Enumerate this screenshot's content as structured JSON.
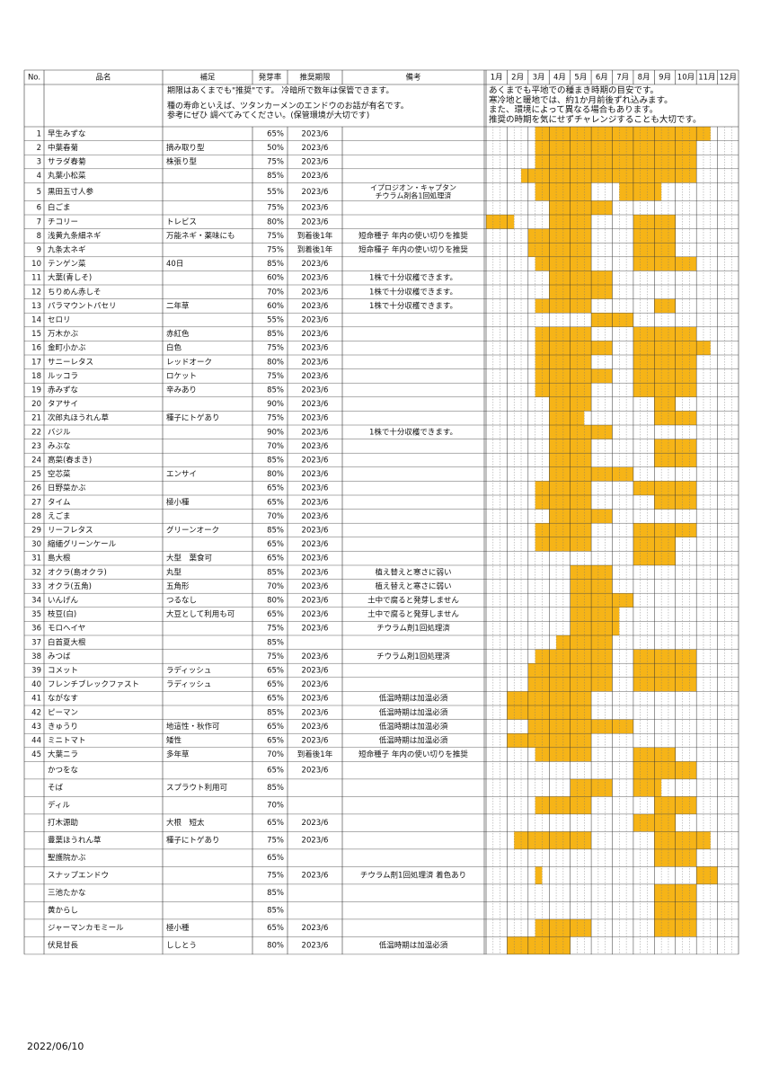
{
  "table": {
    "columns": [
      "No.",
      "品名",
      "補足",
      "発芽率",
      "推奨期限",
      "備考"
    ],
    "months": [
      "1月",
      "2月",
      "3月",
      "4月",
      "5月",
      "6月",
      "7月",
      "8月",
      "9月",
      "10月",
      "11月",
      "12月"
    ],
    "note": {
      "left": [
        "期限はあくまでも\"推奨\"です。 冷暗所で数年は保管できます。",
        "種の寿命といえば、ツタンカーメンのエンドウのお話が有名です。",
        "参考にぜひ 調べてみてください。(保管環境が大切です)"
      ],
      "right": [
        "あくまでも平地での種まき時期の目安です。",
        "寒冷地と暖地では、約1か月前後ずれ込みます。",
        "また、環境によって異なる場合もあります。",
        "推奨の時期を気にせずチャレンジすることも大切です。"
      ]
    },
    "rows": [
      {
        "no": 1,
        "name": "早生みずな",
        "rate": "65%",
        "expiry": "2023/6",
        "sow": [
          [
            7,
            31
          ]
        ]
      },
      {
        "no": 2,
        "name": "中葉春菊",
        "note": "摘み取り型",
        "rate": "50%",
        "expiry": "2023/6",
        "sow": [
          [
            7,
            29
          ]
        ]
      },
      {
        "no": 3,
        "name": "サラダ春菊",
        "note": "株張り型",
        "rate": "75%",
        "expiry": "2023/6",
        "sow": [
          [
            7,
            29
          ]
        ]
      },
      {
        "no": 4,
        "name": "丸葉小松菜",
        "rate": "85%",
        "expiry": "2023/6",
        "sow": [
          [
            5,
            29
          ]
        ]
      },
      {
        "no": 5,
        "name": "黒田五寸人参",
        "rate": "55%",
        "expiry": "2023/6",
        "remark": [
          "イプロジオン・キャプタン",
          "チウラム剤各1回処理済"
        ],
        "sow": [
          [
            7,
            14
          ],
          [
            19,
            24
          ]
        ]
      },
      {
        "no": 6,
        "name": "白ごま",
        "rate": "75%",
        "expiry": "2023/6",
        "sow": [
          [
            9,
            17
          ]
        ]
      },
      {
        "no": 7,
        "name": "チコリー",
        "note": "トレビス",
        "rate": "80%",
        "expiry": "2023/6",
        "sow": [
          [
            0,
            3
          ],
          [
            9,
            14
          ],
          [
            21,
            26
          ]
        ]
      },
      {
        "no": 8,
        "name": "浅黄九条細ネギ",
        "note": "万能ネギ・薬味にも",
        "rate": "75%",
        "expiry": "到着後1年",
        "remark": "短命種子 年内の使い切りを推奨",
        "sow": [
          [
            6,
            14
          ],
          [
            21,
            26
          ]
        ]
      },
      {
        "no": 9,
        "name": "九条太ネギ",
        "rate": "75%",
        "expiry": "到着後1年",
        "remark": "短命種子 年内の使い切りを推奨",
        "sow": [
          [
            6,
            14
          ],
          [
            21,
            26
          ]
        ]
      },
      {
        "no": 10,
        "name": "テンゲン菜",
        "note": "40日",
        "rate": "85%",
        "expiry": "2023/6",
        "sow": [
          [
            7,
            14
          ],
          [
            21,
            29
          ]
        ]
      },
      {
        "no": 11,
        "name": "大葉(青しそ)",
        "rate": "60%",
        "expiry": "2023/6",
        "remark": "1株で十分収穫できます。",
        "sow": [
          [
            9,
            17
          ]
        ]
      },
      {
        "no": 12,
        "name": "ちりめん赤しそ",
        "rate": "70%",
        "expiry": "2023/6",
        "remark": "1株で十分収穫できます。",
        "sow": [
          [
            9,
            17
          ]
        ]
      },
      {
        "no": 13,
        "name": "パラマウントパセリ",
        "note": "二年草",
        "rate": "60%",
        "expiry": "2023/6",
        "remark": "1株で十分収穫できます。",
        "sow": [
          [
            7,
            14
          ],
          [
            24,
            26
          ]
        ]
      },
      {
        "no": 14,
        "name": "セロリ",
        "rate": "55%",
        "expiry": "2023/6",
        "sow": [
          [
            15,
            20
          ]
        ]
      },
      {
        "no": 15,
        "name": "万木かぶ",
        "note": "赤紅色",
        "rate": "85%",
        "expiry": "2023/6",
        "sow": [
          [
            7,
            14
          ],
          [
            21,
            29
          ]
        ]
      },
      {
        "no": 16,
        "name": "金町小かぶ",
        "note": "白色",
        "rate": "75%",
        "expiry": "2023/6",
        "sow": [
          [
            7,
            17
          ],
          [
            21,
            31
          ]
        ]
      },
      {
        "no": 17,
        "name": "サニーレタス",
        "note": "レッドオーク",
        "rate": "80%",
        "expiry": "2023/6",
        "sow": [
          [
            7,
            14
          ],
          [
            21,
            29
          ]
        ]
      },
      {
        "no": 18,
        "name": "ルッコラ",
        "note": "ロケット",
        "rate": "75%",
        "expiry": "2023/6",
        "sow": [
          [
            7,
            17
          ],
          [
            21,
            29
          ]
        ]
      },
      {
        "no": 19,
        "name": "赤みずな",
        "note": "辛みあり",
        "rate": "85%",
        "expiry": "2023/6",
        "sow": [
          [
            7,
            14
          ],
          [
            21,
            29
          ]
        ]
      },
      {
        "no": 20,
        "name": "タアサイ",
        "rate": "90%",
        "expiry": "2023/6",
        "sow": [
          [
            9,
            14
          ],
          [
            24,
            26
          ]
        ]
      },
      {
        "no": 21,
        "name": "次郎丸ほうれん草",
        "note": "種子にトゲあり",
        "rate": "75%",
        "expiry": "2023/6",
        "sow": [
          [
            9,
            13
          ],
          [
            24,
            29
          ]
        ]
      },
      {
        "no": 22,
        "name": "バジル",
        "rate": "90%",
        "expiry": "2023/6",
        "remark": "1株で十分収穫できます。",
        "sow": [
          [
            9,
            17
          ]
        ]
      },
      {
        "no": 23,
        "name": "みぶな",
        "rate": "70%",
        "expiry": "2023/6",
        "sow": [
          [
            9,
            14
          ],
          [
            24,
            29
          ]
        ]
      },
      {
        "no": 24,
        "name": "高菜(春まき)",
        "rate": "85%",
        "expiry": "2023/6",
        "sow": [
          [
            9,
            14
          ],
          [
            24,
            29
          ]
        ]
      },
      {
        "no": 25,
        "name": "空芯菜",
        "note": "エンサイ",
        "rate": "80%",
        "expiry": "2023/6",
        "sow": [
          [
            9,
            20
          ]
        ]
      },
      {
        "no": 26,
        "name": "日野菜かぶ",
        "rate": "65%",
        "expiry": "2023/6",
        "sow": [
          [
            7,
            14
          ],
          [
            21,
            29
          ]
        ]
      },
      {
        "no": 27,
        "name": "タイム",
        "note": "極小種",
        "rate": "65%",
        "expiry": "2023/6",
        "sow": [
          [
            7,
            14
          ],
          [
            24,
            29
          ]
        ]
      },
      {
        "no": 28,
        "name": "えごま",
        "rate": "70%",
        "expiry": "2023/6",
        "sow": [
          [
            9,
            17
          ]
        ]
      },
      {
        "no": 29,
        "name": "リーフレタス",
        "note": "グリーンオーク",
        "rate": "85%",
        "expiry": "2023/6",
        "sow": [
          [
            7,
            14
          ],
          [
            21,
            29
          ]
        ]
      },
      {
        "no": 30,
        "name": "縮緬グリーンケール",
        "rate": "65%",
        "expiry": "2023/6",
        "sow": [
          [
            7,
            14
          ],
          [
            21,
            26
          ]
        ]
      },
      {
        "no": 31,
        "name": "島大根",
        "note": "大型　葉食可",
        "rate": "65%",
        "expiry": "2023/6",
        "sow": [
          [
            21,
            26
          ]
        ]
      },
      {
        "no": 32,
        "name": "オクラ(島オクラ)",
        "note": "丸型",
        "rate": "85%",
        "expiry": "2023/6",
        "remark": "植え替えと寒さに弱い",
        "sow": [
          [
            12,
            17
          ]
        ]
      },
      {
        "no": 33,
        "name": "オクラ(五角)",
        "note": "五角形",
        "rate": "70%",
        "expiry": "2023/6",
        "remark": "植え替えと寒さに弱い",
        "sow": [
          [
            12,
            17
          ]
        ]
      },
      {
        "no": 34,
        "name": "いんげん",
        "note": "つるなし",
        "rate": "80%",
        "expiry": "2023/6",
        "remark": "土中で腐ると発芽しません",
        "sow": [
          [
            12,
            20
          ]
        ]
      },
      {
        "no": 35,
        "name": "枝豆(白)",
        "note": "大豆として利用も可",
        "rate": "65%",
        "expiry": "2023/6",
        "remark": "土中で腐ると発芽しません",
        "sow": [
          [
            12,
            18
          ]
        ]
      },
      {
        "no": 36,
        "name": "モロヘイヤ",
        "rate": "75%",
        "expiry": "2023/6",
        "remark": "チウラム剤1回処理済",
        "sow": [
          [
            12,
            18
          ]
        ]
      },
      {
        "no": 37,
        "name": "白首夏大根",
        "rate": "85%",
        "sow": [
          [
            10,
            17
          ]
        ]
      },
      {
        "no": 38,
        "name": "みつば",
        "rate": "75%",
        "expiry": "2023/6",
        "remark": "チウラム剤1回処理済",
        "sow": [
          [
            7,
            17
          ],
          [
            21,
            29
          ]
        ]
      },
      {
        "no": 39,
        "name": "コメット",
        "note": "ラディッシュ",
        "rate": "65%",
        "expiry": "2023/6",
        "sow": [
          [
            6,
            17
          ],
          [
            21,
            29
          ]
        ]
      },
      {
        "no": 40,
        "name": "フレンチブレックファスト",
        "note": "ラディッシュ",
        "rate": "65%",
        "expiry": "2023/6",
        "sow": [
          [
            6,
            17
          ],
          [
            21,
            29
          ]
        ]
      },
      {
        "no": 41,
        "name": "ながなす",
        "rate": "65%",
        "expiry": "2023/6",
        "remark": "低温時期は加温必須",
        "sow": [
          [
            3,
            14
          ]
        ]
      },
      {
        "no": 42,
        "name": "ピーマン",
        "rate": "85%",
        "expiry": "2023/6",
        "remark": "低温時期は加温必須",
        "sow": [
          [
            3,
            14
          ]
        ]
      },
      {
        "no": 43,
        "name": "きゅうり",
        "note": "地這性・秋作可",
        "rate": "65%",
        "expiry": "2023/6",
        "remark": "低温時期は加温必須",
        "sow": [
          [
            6,
            20
          ]
        ]
      },
      {
        "no": 44,
        "name": "ミニトマト",
        "note": "矮性",
        "rate": "65%",
        "expiry": "2023/6",
        "remark": "低温時期は加温必須",
        "sow": [
          [
            3,
            14
          ]
        ]
      },
      {
        "no": 45,
        "name": "大葉ニラ",
        "note": "多年草",
        "rate": "70%",
        "expiry": "到着後1年",
        "remark": "短命種子 年内の使い切りを推奨",
        "sow": [
          [
            7,
            14
          ],
          [
            21,
            26
          ]
        ]
      },
      {
        "name": "かつをな",
        "rate": "65%",
        "expiry": "2023/6",
        "sow": [
          [
            21,
            29
          ]
        ]
      },
      {
        "name": "そば",
        "note": "スプラウト利用可",
        "rate": "85%",
        "sow": [
          [
            12,
            17
          ],
          [
            21,
            24
          ]
        ]
      },
      {
        "name": "ディル",
        "rate": "70%",
        "sow": [
          [
            7,
            14
          ],
          [
            24,
            29
          ]
        ]
      },
      {
        "name": "打木源助",
        "note": "大根　短太",
        "rate": "65%",
        "expiry": "2023/6",
        "sow": [
          [
            21,
            26
          ]
        ]
      },
      {
        "name": "豊葉ほうれん草",
        "note": "種子にトゲあり",
        "rate": "75%",
        "expiry": "2023/6",
        "sow": [
          [
            4,
            14
          ],
          [
            24,
            31
          ]
        ]
      },
      {
        "name": "聖護院かぶ",
        "rate": "65%",
        "sow": [
          [
            24,
            29
          ]
        ]
      },
      {
        "name": "スナップエンドウ",
        "rate": "75%",
        "expiry": "2023/6",
        "remark": "チウラム剤1回処理済 着色あり",
        "sow": [
          [
            7,
            7
          ],
          [
            30,
            32
          ]
        ]
      },
      {
        "name": "三池たかな",
        "rate": "85%",
        "sow": [
          [
            24,
            29
          ]
        ]
      },
      {
        "name": "黄からし",
        "rate": "85%",
        "sow": [
          [
            24,
            29
          ]
        ]
      },
      {
        "name": "ジャーマンカモミール",
        "note": "極小種",
        "rate": "65%",
        "expiry": "2023/6",
        "sow": [
          [
            7,
            14
          ],
          [
            24,
            29
          ]
        ]
      },
      {
        "name": "伏見甘長",
        "note": "ししとう",
        "rate": "80%",
        "expiry": "2023/6",
        "remark": "低温時期は加温必須",
        "sow": [
          [
            3,
            11
          ]
        ]
      }
    ]
  },
  "footer": {
    "date": "2022/06/10"
  }
}
